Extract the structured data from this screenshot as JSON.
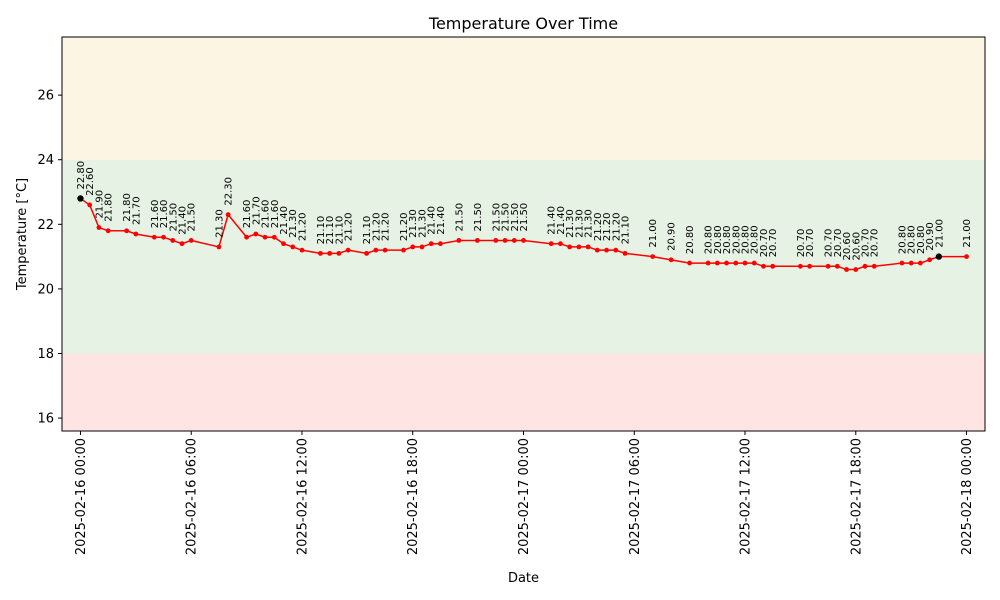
{
  "chart_data": {
    "type": "line",
    "title": "Temperature Over Time",
    "xlabel": "Date",
    "ylabel": "Temperature [°C]",
    "ylim": [
      15.6,
      27.8
    ],
    "xlim": [
      "2025-02-15 23:00",
      "2025-02-18 01:00"
    ],
    "yticks": [
      16,
      18,
      20,
      22,
      24,
      26
    ],
    "xticks": [
      "2025-02-16 00:00",
      "2025-02-16 06:00",
      "2025-02-16 12:00",
      "2025-02-16 18:00",
      "2025-02-17 00:00",
      "2025-02-17 06:00",
      "2025-02-17 12:00",
      "2025-02-17 18:00",
      "2025-02-18 00:00"
    ],
    "grid": false,
    "bands": [
      {
        "from": 15.6,
        "to": 18,
        "color": "#ffe4e4"
      },
      {
        "from": 18,
        "to": 24,
        "color": "#e6f2e4"
      },
      {
        "from": 24,
        "to": 27.8,
        "color": "#fdf5e4"
      }
    ],
    "line_color": "#ff0000",
    "highlight_color": "#000000",
    "highlight_points": [
      0,
      70
    ],
    "series": [
      {
        "x": [
          "2025-02-16 00:00",
          "2025-02-16 00:30",
          "2025-02-16 01:00",
          "2025-02-16 01:30",
          "2025-02-16 02:30",
          "2025-02-16 03:00",
          "2025-02-16 04:00",
          "2025-02-16 04:30",
          "2025-02-16 05:00",
          "2025-02-16 05:30",
          "2025-02-16 06:00",
          "2025-02-16 07:30",
          "2025-02-16 08:00",
          "2025-02-16 09:00",
          "2025-02-16 09:30",
          "2025-02-16 10:00",
          "2025-02-16 10:30",
          "2025-02-16 11:00",
          "2025-02-16 11:30",
          "2025-02-16 12:00",
          "2025-02-16 13:00",
          "2025-02-16 13:30",
          "2025-02-16 14:00",
          "2025-02-16 14:30",
          "2025-02-16 15:30",
          "2025-02-16 16:00",
          "2025-02-16 16:30",
          "2025-02-16 17:30",
          "2025-02-16 18:00",
          "2025-02-16 18:30",
          "2025-02-16 19:00",
          "2025-02-16 19:30",
          "2025-02-16 20:30",
          "2025-02-16 21:30",
          "2025-02-16 22:30",
          "2025-02-16 23:00",
          "2025-02-16 23:30",
          "2025-02-17 00:00",
          "2025-02-17 01:30",
          "2025-02-17 02:00",
          "2025-02-17 02:30",
          "2025-02-17 03:00",
          "2025-02-17 03:30",
          "2025-02-17 04:00",
          "2025-02-17 04:30",
          "2025-02-17 05:00",
          "2025-02-17 05:30",
          "2025-02-17 07:00",
          "2025-02-17 08:00",
          "2025-02-17 09:00",
          "2025-02-17 10:00",
          "2025-02-17 10:30",
          "2025-02-17 11:00",
          "2025-02-17 11:30",
          "2025-02-17 12:00",
          "2025-02-17 12:30",
          "2025-02-17 13:00",
          "2025-02-17 13:30",
          "2025-02-17 15:00",
          "2025-02-17 15:30",
          "2025-02-17 16:30",
          "2025-02-17 17:00",
          "2025-02-17 17:30",
          "2025-02-17 18:00",
          "2025-02-17 18:30",
          "2025-02-17 19:00",
          "2025-02-17 20:30",
          "2025-02-17 21:00",
          "2025-02-17 21:30",
          "2025-02-17 22:00",
          "2025-02-17 22:30",
          "2025-02-18 00:00"
        ],
        "y": [
          22.8,
          22.6,
          21.9,
          21.8,
          21.8,
          21.7,
          21.6,
          21.6,
          21.5,
          21.4,
          21.5,
          21.3,
          22.3,
          21.6,
          21.7,
          21.6,
          21.6,
          21.4,
          21.3,
          21.2,
          21.1,
          21.1,
          21.1,
          21.2,
          21.1,
          21.2,
          21.2,
          21.2,
          21.3,
          21.3,
          21.4,
          21.4,
          21.5,
          21.5,
          21.5,
          21.5,
          21.5,
          21.5,
          21.4,
          21.4,
          21.3,
          21.3,
          21.3,
          21.2,
          21.2,
          21.2,
          21.1,
          21.0,
          20.9,
          20.8,
          20.8,
          20.8,
          20.8,
          20.8,
          20.8,
          20.8,
          20.7,
          20.7,
          20.7,
          20.7,
          20.7,
          20.7,
          20.6,
          20.6,
          20.7,
          20.7,
          20.8,
          20.8,
          20.8,
          20.9,
          21.0,
          21.0
        ],
        "labels": [
          "22.80",
          "22.60",
          "21.90",
          "21.80",
          "21.80",
          "21.70",
          "21.60",
          "21.60",
          "21.50",
          "21.40",
          "21.50",
          "21.30",
          "22.30",
          "21.60",
          "21.70",
          "21.60",
          "21.60",
          "21.40",
          "21.30",
          "21.20",
          "21.10",
          "21.10",
          "21.10",
          "21.20",
          "21.10",
          "21.20",
          "21.20",
          "21.20",
          "21.30",
          "21.30",
          "21.40",
          "21.40",
          "21.50",
          "21.50",
          "21.50",
          "21.50",
          "21.50",
          "21.50",
          "21.40",
          "21.40",
          "21.30",
          "21.30",
          "21.30",
          "21.20",
          "21.20",
          "21.20",
          "21.10",
          "21.00",
          "20.90",
          "20.80",
          "20.80",
          "20.80",
          "20.80",
          "20.80",
          "20.80",
          "20.80",
          "20.70",
          "20.70",
          "20.70",
          "20.70",
          "20.70",
          "20.70",
          "20.60",
          "20.60",
          "20.70",
          "20.70",
          "20.80",
          "20.80",
          "20.80",
          "20.90",
          "21.00",
          "21.00"
        ]
      }
    ]
  }
}
